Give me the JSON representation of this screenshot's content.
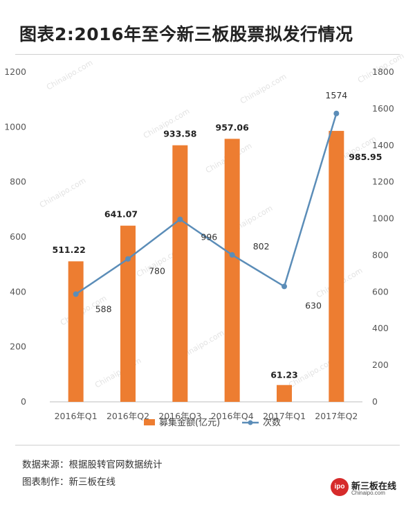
{
  "header": {
    "title": "图表2:2016年至今新三板股票拟发行情况"
  },
  "footer": {
    "source": "数据来源：根据股转官网数据统计",
    "maker": "图表制作：新三板在线",
    "logo_badge": "ipo",
    "logo_badge_small": "China",
    "logo_text": "新三板在线",
    "logo_sub": "Chinaipo.com"
  },
  "watermark_text": "Chinaipo.com",
  "colors": {
    "bar": "#ed7d31",
    "line": "#5b8db8"
  },
  "chart_data": {
    "type": "bar+line",
    "title": "图表2:2016年至今新三板股票拟发行情况",
    "categories": [
      "2016年Q1",
      "2016年Q2",
      "2016年Q3",
      "2016年Q4",
      "2017年Q1",
      "2017年Q2"
    ],
    "series": [
      {
        "name": "募集金额(亿元)",
        "type": "bar",
        "axis": "left",
        "values": [
          511.22,
          641.07,
          933.58,
          957.06,
          61.23,
          985.95
        ],
        "labels": [
          "511.22",
          "641.07",
          "933.58",
          "957.06",
          "61.23",
          "985.95"
        ]
      },
      {
        "name": "次数",
        "type": "line",
        "axis": "right",
        "values": [
          588,
          780,
          996,
          802,
          630,
          1574
        ],
        "labels": [
          "588",
          "780",
          "996",
          "802",
          "630",
          "1574"
        ]
      }
    ],
    "y_left": {
      "min": 0,
      "max": 1200,
      "ticks": [
        "0",
        "200",
        "400",
        "600",
        "800",
        "1000",
        "1200"
      ]
    },
    "y_right": {
      "min": 0,
      "max": 1800,
      "ticks": [
        "0",
        "200",
        "400",
        "600",
        "800",
        "1000",
        "1200",
        "1400",
        "1600",
        "1800"
      ]
    },
    "legend": {
      "position": "bottom",
      "items": [
        "募集金额(亿元)",
        "次数"
      ]
    },
    "grid": false
  }
}
